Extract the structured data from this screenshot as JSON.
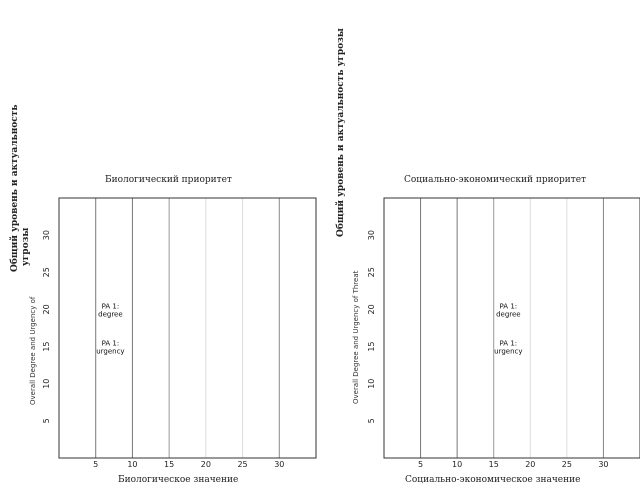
{
  "chart_data": [
    {
      "type": "scatter",
      "title": "Биологический приоритет",
      "xlabel": "Биологическое значение",
      "ylabel_ru_line1": "Общий уровень и актуальность",
      "ylabel_ru_line2": "угрозы",
      "ylabel_en": "Overall Degree and Urgency of",
      "xlim": [
        0,
        35
      ],
      "ylim": [
        0,
        35
      ],
      "xticks": [
        5,
        10,
        15,
        20,
        25,
        30
      ],
      "yticks": [
        5,
        10,
        15,
        20,
        25,
        30
      ],
      "grid": "vertical",
      "points": [
        {
          "label_line1": "PA 1:",
          "label_line2": "degree",
          "x": 7,
          "y": 20
        },
        {
          "label_line1": "PA 1:",
          "label_line2": "urgency",
          "x": 7,
          "y": 15
        }
      ]
    },
    {
      "type": "scatter",
      "title": "Социально-экономический приоритет",
      "xlabel": "Социально-экономическое значение",
      "ylabel_ru_line1": "Общий уровень и актуальность угрозы",
      "ylabel_en": "Overall Degree and Urgency of Threat",
      "xlim": [
        0,
        35
      ],
      "ylim": [
        0,
        35
      ],
      "xticks": [
        5,
        10,
        15,
        20,
        25,
        30
      ],
      "yticks": [
        5,
        10,
        15,
        20,
        25,
        30
      ],
      "grid": "vertical",
      "points": [
        {
          "label_line1": "PA 1:",
          "label_line2": "degree",
          "x": 17,
          "y": 20
        },
        {
          "label_line1": "PA 1:",
          "label_line2": "urgency",
          "x": 17,
          "y": 15
        }
      ]
    }
  ]
}
